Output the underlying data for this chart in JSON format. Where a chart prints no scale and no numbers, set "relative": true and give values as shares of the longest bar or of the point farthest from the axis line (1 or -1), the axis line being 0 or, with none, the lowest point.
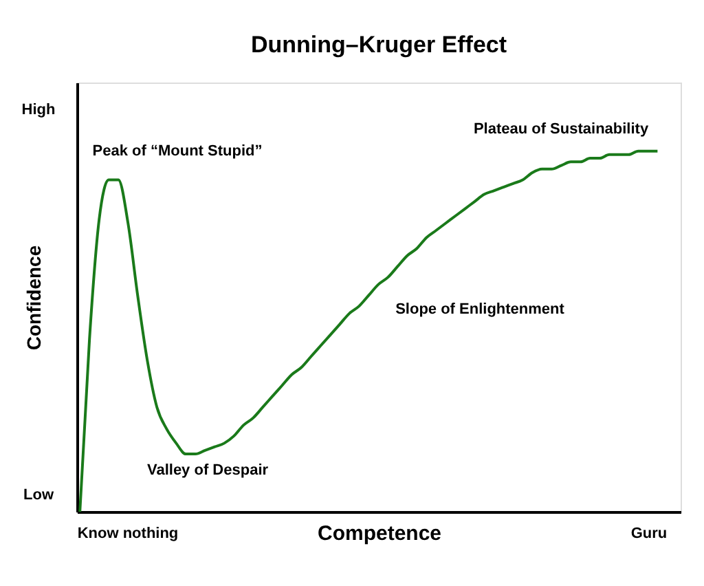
{
  "chart_data": {
    "type": "line",
    "title": "Dunning–Kruger Effect",
    "xlabel": "Competence",
    "ylabel": "Confidence",
    "relative": true,
    "categories": [
      null,
      null,
      null,
      null,
      null,
      null,
      null,
      null,
      null,
      null,
      null,
      null,
      null,
      null,
      null,
      null,
      null,
      null,
      null,
      null,
      null,
      null,
      null,
      null,
      null,
      null,
      null,
      null,
      null,
      null,
      null,
      null,
      null,
      null,
      null,
      null,
      null,
      null,
      null,
      null,
      null,
      null,
      null,
      null,
      null,
      null,
      null,
      null,
      null,
      null,
      null,
      null,
      null,
      null,
      null,
      null,
      null,
      null,
      null,
      null,
      null
    ],
    "series": [
      {
        "color": "#1a7a1a",
        "values": [
          0,
          0.48,
          0.81,
          0.92,
          0.92,
          0.8,
          0.6,
          0.42,
          0.29,
          0.23,
          0.19,
          0.16,
          0.16,
          0.17,
          0.18,
          0.19,
          0.21,
          0.24,
          0.26,
          0.29,
          0.32,
          0.35,
          0.38,
          0.4,
          0.43,
          0.46,
          0.49,
          0.52,
          0.55,
          0.57,
          0.6,
          0.63,
          0.65,
          0.68,
          0.71,
          0.73,
          0.76,
          0.78,
          0.8,
          0.82,
          0.84,
          0.86,
          0.88,
          0.89,
          0.9,
          0.91,
          0.92,
          0.94,
          0.95,
          0.95,
          0.96,
          0.97,
          0.97,
          0.98,
          0.98,
          0.99,
          0.99,
          0.99,
          1,
          1,
          1
        ]
      }
    ],
    "grid": false,
    "marker": "none",
    "line_style": "solid",
    "annotations": [
      "High",
      "Low",
      "Know nothing",
      "Guru",
      "Peak of “Mount Stupid”",
      "Valley of Despair",
      "Slope of Enlightenment",
      "Plateau of Sustainability"
    ]
  }
}
